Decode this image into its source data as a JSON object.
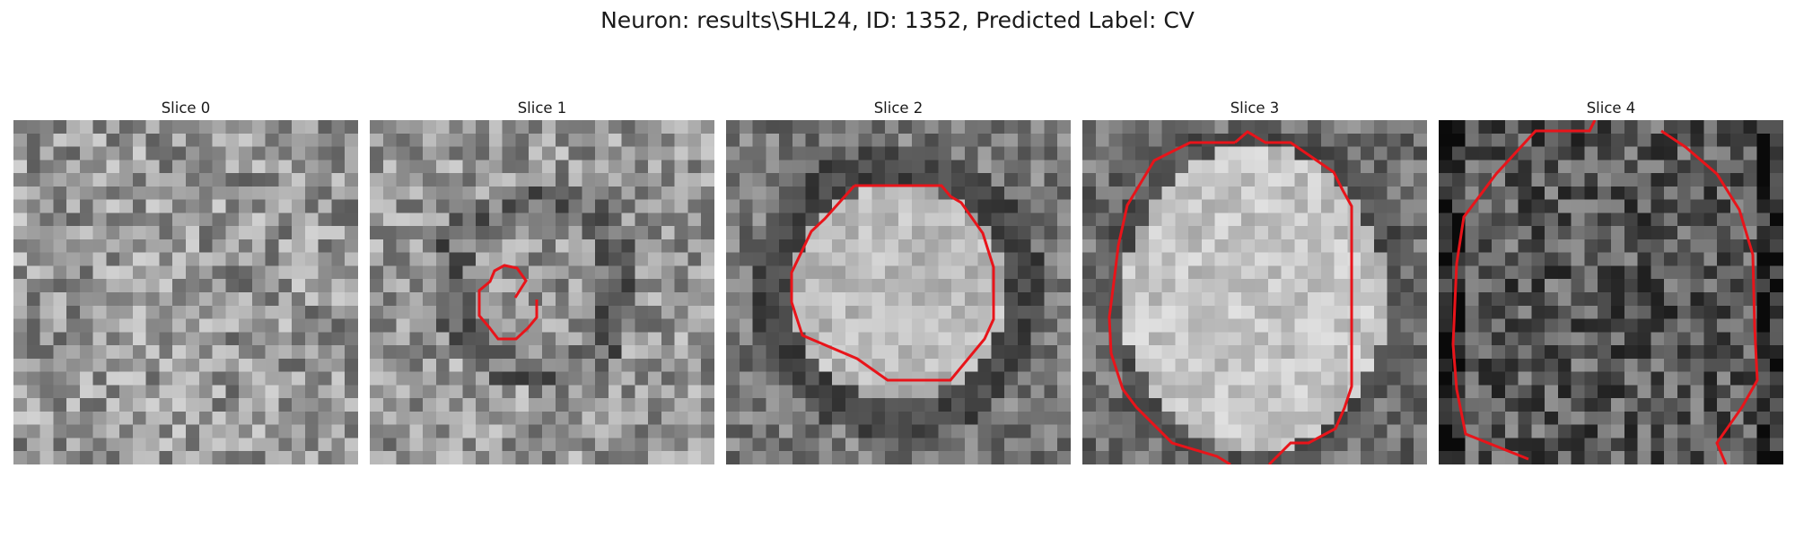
{
  "figure": {
    "suptitle": "Neuron: results\\SHL24, ID: 1352, Predicted Label: CV",
    "contour_color": "#e8141a",
    "panels": [
      {
        "title": "Slice 0",
        "image": "grayscale-noise-texture",
        "contour": "none"
      },
      {
        "title": "Slice 1",
        "image": "grayscale-noise-dark-ring",
        "contour": "small-octagon"
      },
      {
        "title": "Slice 2",
        "image": "grayscale-bright-disc-dark-ring",
        "contour": "medium-octagon"
      },
      {
        "title": "Slice 3",
        "image": "grayscale-large-bright-disc",
        "contour": "large-irregular"
      },
      {
        "title": "Slice 4",
        "image": "grayscale-dark-noise-edges",
        "contour": "partial-edge-arcs"
      }
    ]
  }
}
